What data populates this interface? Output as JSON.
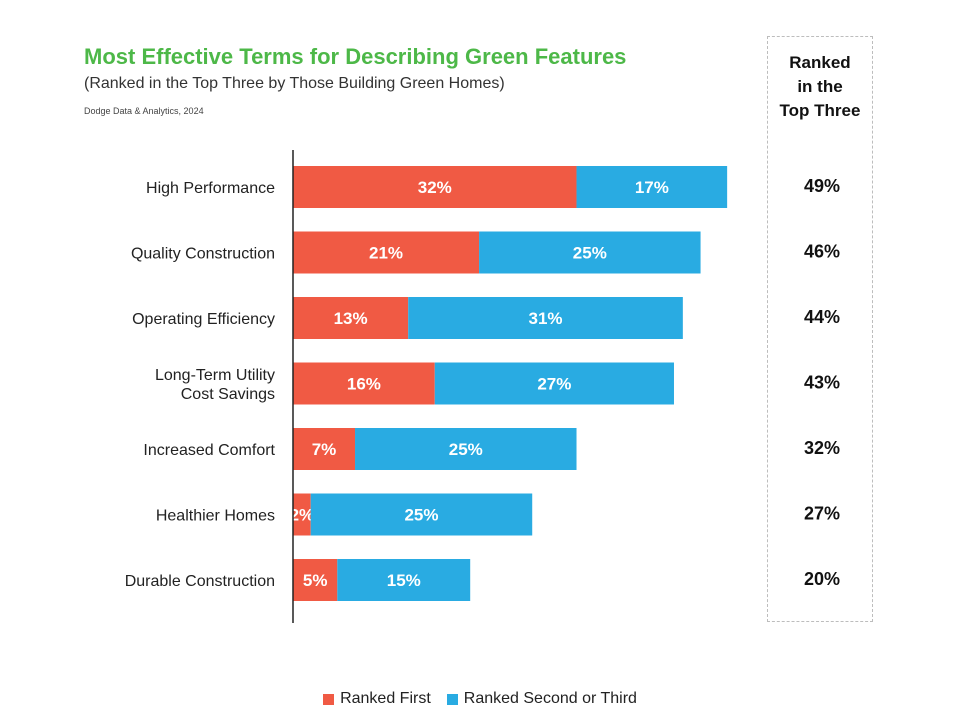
{
  "chart_data": {
    "type": "bar",
    "orientation": "horizontal",
    "stacked": true,
    "title": "Most Effective Terms for Describing Green Features",
    "subtitle": "(Ranked in the Top Three by Those Building Green Homes)",
    "source": "Dodge Data & Analytics, 2024",
    "categories": [
      [
        "High Performance"
      ],
      [
        "Quality Construction"
      ],
      [
        "Operating Efficiency"
      ],
      [
        "Long-Term Utility",
        "Cost Savings"
      ],
      [
        "Increased Comfort"
      ],
      [
        "Healthier Homes"
      ],
      [
        "Durable Construction"
      ]
    ],
    "series": [
      {
        "name": "Ranked First",
        "color": "#f05a44",
        "values": [
          32,
          21,
          13,
          16,
          7,
          2,
          5
        ],
        "labels": [
          "32%",
          "21%",
          "13%",
          "16%",
          "7%",
          "2%",
          "5%"
        ]
      },
      {
        "name": "Ranked Second or Third",
        "color": "#29abe2",
        "values": [
          17,
          25,
          31,
          27,
          25,
          25,
          15
        ],
        "labels": [
          "17%",
          "25%",
          "31%",
          "27%",
          "25%",
          "25%",
          "15%"
        ]
      }
    ],
    "totals_header": "Ranked\nin the\nTop Three",
    "totals": [
      "49%",
      "46%",
      "44%",
      "43%",
      "32%",
      "27%",
      "20%"
    ],
    "xlim": [
      0,
      50
    ],
    "legend_position": "bottom",
    "grid": false
  }
}
